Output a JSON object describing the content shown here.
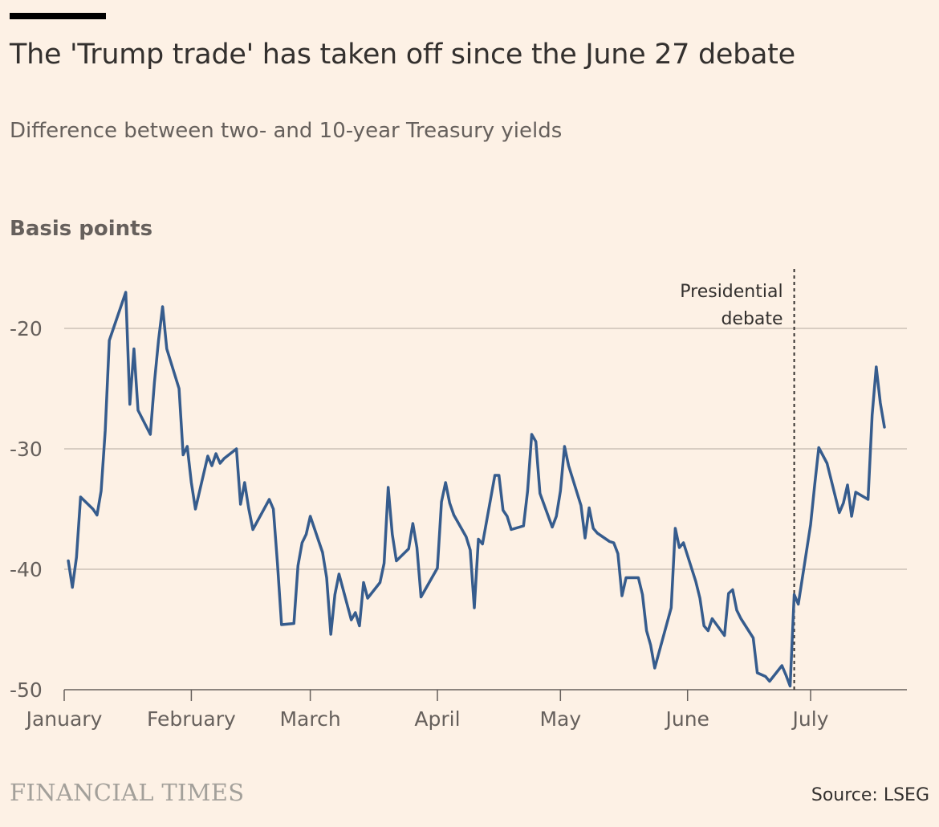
{
  "header": {
    "title": "The 'Trump trade' has taken off since the June 27 debate",
    "subtitle": "Difference between two- and 10-year Treasury yields",
    "unit_label": "Basis points"
  },
  "footer": {
    "source": "Source: LSEG",
    "logo_text": "FINANCIAL TIMES"
  },
  "colors": {
    "background": "#fdf1e5",
    "line": "#365c8d",
    "grid": "#ccc1b7",
    "text": "#33302e"
  },
  "chart_data": {
    "type": "line",
    "title": "The 'Trump trade' has taken off since the June 27 debate",
    "subtitle": "Difference between two- and 10-year Treasury yields",
    "ylabel": "Basis points",
    "xlabel": "",
    "ylim": [
      -50,
      -15
    ],
    "yticks": [
      -20,
      -30,
      -40,
      -50
    ],
    "xlim": [
      "2024-01-01",
      "2024-07-19"
    ],
    "xticks": [
      {
        "date": "2024-01-01",
        "label": "January"
      },
      {
        "date": "2024-02-01",
        "label": "February"
      },
      {
        "date": "2024-03-01",
        "label": "March"
      },
      {
        "date": "2024-04-01",
        "label": "April"
      },
      {
        "date": "2024-05-01",
        "label": "May"
      },
      {
        "date": "2024-06-01",
        "label": "June"
      },
      {
        "date": "2024-07-01",
        "label": "July"
      }
    ],
    "grid": true,
    "annotations": [
      {
        "type": "vline",
        "date": "2024-06-27",
        "text_lines": [
          "Presidential",
          "debate"
        ]
      }
    ],
    "series": [
      {
        "values": [
          [
            "2024-01-02",
            -39.3
          ],
          [
            "2024-01-03",
            -41.5
          ],
          [
            "2024-01-04",
            -39.0
          ],
          [
            "2024-01-05",
            -34.0
          ],
          [
            "2024-01-08",
            -35.0
          ],
          [
            "2024-01-09",
            -35.5
          ],
          [
            "2024-01-10",
            -33.5
          ],
          [
            "2024-01-11",
            -28.5
          ],
          [
            "2024-01-12",
            -21.0
          ],
          [
            "2024-01-16",
            -17.0
          ],
          [
            "2024-01-17",
            -26.3
          ],
          [
            "2024-01-18",
            -21.7
          ],
          [
            "2024-01-19",
            -26.8
          ],
          [
            "2024-01-22",
            -28.8
          ],
          [
            "2024-01-23",
            -24.5
          ],
          [
            "2024-01-24",
            -21.0
          ],
          [
            "2024-01-25",
            -18.2
          ],
          [
            "2024-01-26",
            -21.7
          ],
          [
            "2024-01-29",
            -25.0
          ],
          [
            "2024-01-30",
            -30.5
          ],
          [
            "2024-01-31",
            -29.8
          ],
          [
            "2024-02-01",
            -32.8
          ],
          [
            "2024-02-02",
            -35.0
          ],
          [
            "2024-02-05",
            -30.6
          ],
          [
            "2024-02-06",
            -31.4
          ],
          [
            "2024-02-07",
            -30.4
          ],
          [
            "2024-02-08",
            -31.2
          ],
          [
            "2024-02-09",
            -30.8
          ],
          [
            "2024-02-12",
            -30.0
          ],
          [
            "2024-02-13",
            -34.6
          ],
          [
            "2024-02-14",
            -32.8
          ],
          [
            "2024-02-15",
            -35.0
          ],
          [
            "2024-02-16",
            -36.7
          ],
          [
            "2024-02-20",
            -34.2
          ],
          [
            "2024-02-21",
            -35.0
          ],
          [
            "2024-02-22",
            -39.5
          ],
          [
            "2024-02-23",
            -44.6
          ],
          [
            "2024-02-26",
            -44.5
          ],
          [
            "2024-02-27",
            -39.7
          ],
          [
            "2024-02-28",
            -37.8
          ],
          [
            "2024-02-29",
            -37.1
          ],
          [
            "2024-03-01",
            -35.6
          ],
          [
            "2024-03-04",
            -38.6
          ],
          [
            "2024-03-05",
            -40.7
          ],
          [
            "2024-03-06",
            -45.4
          ],
          [
            "2024-03-07",
            -42.1
          ],
          [
            "2024-03-08",
            -40.4
          ],
          [
            "2024-03-11",
            -44.2
          ],
          [
            "2024-03-12",
            -43.6
          ],
          [
            "2024-03-13",
            -44.7
          ],
          [
            "2024-03-14",
            -41.1
          ],
          [
            "2024-03-15",
            -42.4
          ],
          [
            "2024-03-18",
            -41.1
          ],
          [
            "2024-03-19",
            -39.5
          ],
          [
            "2024-03-20",
            -33.2
          ],
          [
            "2024-03-21",
            -37.1
          ],
          [
            "2024-03-22",
            -39.3
          ],
          [
            "2024-03-25",
            -38.3
          ],
          [
            "2024-03-26",
            -36.2
          ],
          [
            "2024-03-27",
            -38.2
          ],
          [
            "2024-03-28",
            -42.3
          ],
          [
            "2024-04-01",
            -39.9
          ],
          [
            "2024-04-02",
            -34.4
          ],
          [
            "2024-04-03",
            -32.8
          ],
          [
            "2024-04-04",
            -34.5
          ],
          [
            "2024-04-05",
            -35.5
          ],
          [
            "2024-04-08",
            -37.3
          ],
          [
            "2024-04-09",
            -38.4
          ],
          [
            "2024-04-10",
            -43.2
          ],
          [
            "2024-04-11",
            -37.5
          ],
          [
            "2024-04-12",
            -37.9
          ],
          [
            "2024-04-15",
            -32.2
          ],
          [
            "2024-04-16",
            -32.2
          ],
          [
            "2024-04-17",
            -35.1
          ],
          [
            "2024-04-18",
            -35.6
          ],
          [
            "2024-04-19",
            -36.7
          ],
          [
            "2024-04-22",
            -36.4
          ],
          [
            "2024-04-23",
            -33.5
          ],
          [
            "2024-04-24",
            -28.8
          ],
          [
            "2024-04-25",
            -29.4
          ],
          [
            "2024-04-26",
            -33.7
          ],
          [
            "2024-04-29",
            -36.5
          ],
          [
            "2024-04-30",
            -35.6
          ],
          [
            "2024-05-01",
            -33.5
          ],
          [
            "2024-05-02",
            -29.8
          ],
          [
            "2024-05-03",
            -31.4
          ],
          [
            "2024-05-06",
            -34.7
          ],
          [
            "2024-05-07",
            -37.4
          ],
          [
            "2024-05-08",
            -34.9
          ],
          [
            "2024-05-09",
            -36.6
          ],
          [
            "2024-05-10",
            -37.0
          ],
          [
            "2024-05-13",
            -37.7
          ],
          [
            "2024-05-14",
            -37.8
          ],
          [
            "2024-05-15",
            -38.7
          ],
          [
            "2024-05-16",
            -42.2
          ],
          [
            "2024-05-17",
            -40.7
          ],
          [
            "2024-05-20",
            -40.7
          ],
          [
            "2024-05-21",
            -42.1
          ],
          [
            "2024-05-22",
            -45.1
          ],
          [
            "2024-05-23",
            -46.3
          ],
          [
            "2024-05-24",
            -48.2
          ],
          [
            "2024-05-28",
            -43.2
          ],
          [
            "2024-05-29",
            -36.6
          ],
          [
            "2024-05-30",
            -38.2
          ],
          [
            "2024-05-31",
            -37.8
          ],
          [
            "2024-06-03",
            -41.0
          ],
          [
            "2024-06-04",
            -42.4
          ],
          [
            "2024-06-05",
            -44.7
          ],
          [
            "2024-06-06",
            -45.1
          ],
          [
            "2024-06-07",
            -44.1
          ],
          [
            "2024-06-10",
            -45.5
          ],
          [
            "2024-06-11",
            -42.0
          ],
          [
            "2024-06-12",
            -41.7
          ],
          [
            "2024-06-13",
            -43.4
          ],
          [
            "2024-06-14",
            -44.1
          ],
          [
            "2024-06-17",
            -45.7
          ],
          [
            "2024-06-18",
            -48.6
          ],
          [
            "2024-06-20",
            -48.9
          ],
          [
            "2024-06-21",
            -49.3
          ],
          [
            "2024-06-24",
            -48.0
          ],
          [
            "2024-06-25",
            -48.8
          ],
          [
            "2024-06-26",
            -49.7
          ],
          [
            "2024-06-27",
            -42.1
          ],
          [
            "2024-06-28",
            -42.9
          ],
          [
            "2024-07-01",
            -36.3
          ],
          [
            "2024-07-02",
            -33.0
          ],
          [
            "2024-07-03",
            -29.9
          ],
          [
            "2024-07-05",
            -31.2
          ],
          [
            "2024-07-08",
            -35.3
          ],
          [
            "2024-07-09",
            -34.5
          ],
          [
            "2024-07-10",
            -33.0
          ],
          [
            "2024-07-11",
            -35.6
          ],
          [
            "2024-07-12",
            -33.6
          ],
          [
            "2024-07-15",
            -34.2
          ],
          [
            "2024-07-16",
            -27.2
          ],
          [
            "2024-07-17",
            -23.2
          ],
          [
            "2024-07-18",
            -26.2
          ],
          [
            "2024-07-19",
            -28.2
          ]
        ]
      }
    ]
  }
}
